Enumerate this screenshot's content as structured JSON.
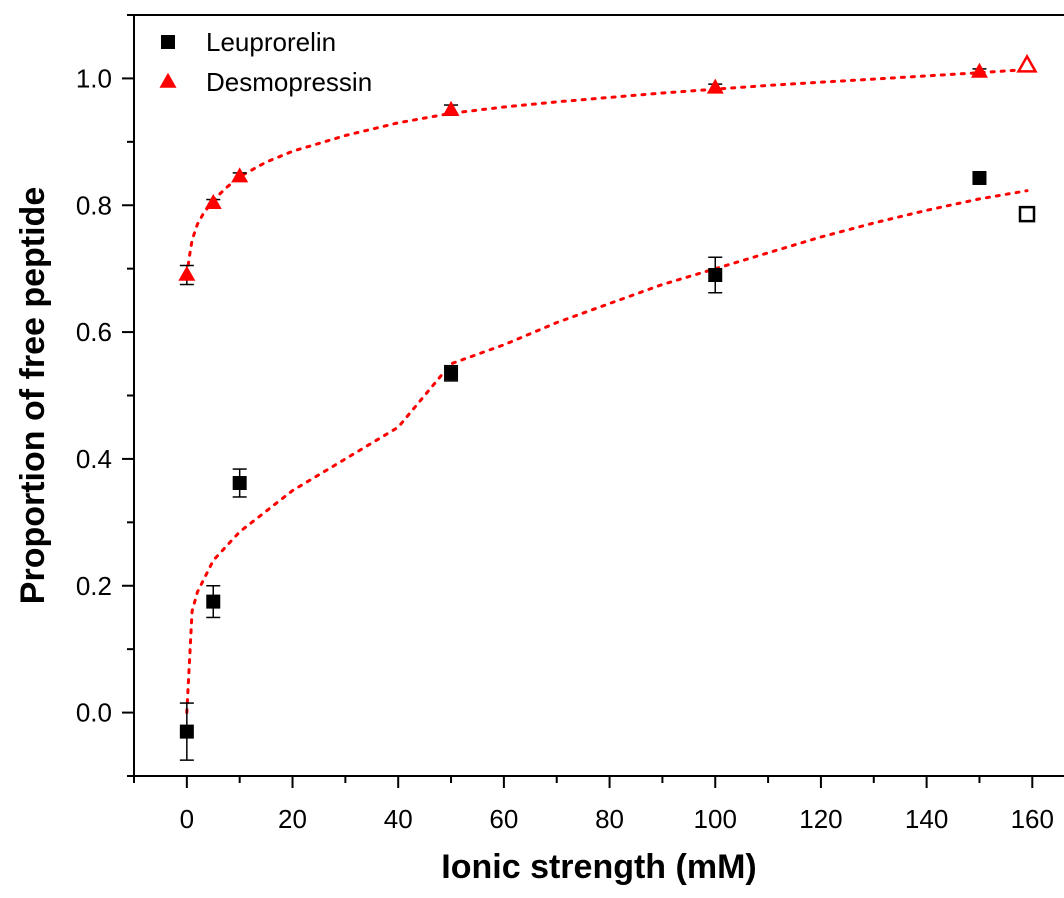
{
  "chart_data": {
    "type": "scatter",
    "xlabel": "Ionic strength (mM)",
    "ylabel": "Proportion of free peptide",
    "xlim": [
      -10,
      166
    ],
    "ylim": [
      -0.1,
      1.1
    ],
    "x_ticks": [
      0,
      20,
      40,
      60,
      80,
      100,
      120,
      140,
      160
    ],
    "x_tick_labels": [
      "0",
      "20",
      "40",
      "60",
      "80",
      "100",
      "120",
      "140",
      "160"
    ],
    "y_ticks": [
      0.0,
      0.2,
      0.4,
      0.6,
      0.8,
      1.0
    ],
    "y_tick_labels": [
      "0.0",
      "0.2",
      "0.4",
      "0.6",
      "0.8",
      "1.0"
    ],
    "grid": false,
    "legend_position": "top-left",
    "colors": {
      "leuprorelin": "#000000",
      "desmopressin": "#ff0000",
      "fit": "#ff0000"
    },
    "series": [
      {
        "name": "Leuprorelin",
        "marker": "square",
        "color": "#000000",
        "points": [
          {
            "x": 0,
            "y": -0.03,
            "err": 0.045
          },
          {
            "x": 5,
            "y": 0.175,
            "err": 0.025
          },
          {
            "x": 10,
            "y": 0.362,
            "err": 0.022
          },
          {
            "x": 50,
            "y": 0.535,
            "err": 0.012
          },
          {
            "x": 100,
            "y": 0.69,
            "err": 0.028
          },
          {
            "x": 150,
            "y": 0.843,
            "err": 0.005
          }
        ],
        "open_points": [
          {
            "x": 159,
            "y": 0.786
          }
        ],
        "fit": [
          [
            0,
            0.0
          ],
          [
            1,
            0.16
          ],
          [
            2,
            0.19
          ],
          [
            5,
            0.24
          ],
          [
            10,
            0.285
          ],
          [
            20,
            0.35
          ],
          [
            30,
            0.4
          ],
          [
            40,
            0.45
          ],
          [
            50,
            0.55
          ],
          [
            60,
            0.58
          ],
          [
            70,
            0.615
          ],
          [
            80,
            0.645
          ],
          [
            90,
            0.675
          ],
          [
            100,
            0.7
          ],
          [
            110,
            0.725
          ],
          [
            120,
            0.75
          ],
          [
            130,
            0.772
          ],
          [
            140,
            0.792
          ],
          [
            150,
            0.81
          ],
          [
            159,
            0.823
          ]
        ]
      },
      {
        "name": "Desmopressin",
        "marker": "triangle",
        "color": "#ff0000",
        "points": [
          {
            "x": 0,
            "y": 0.69,
            "err": 0.015
          },
          {
            "x": 5,
            "y": 0.803,
            "err": 0.006
          },
          {
            "x": 10,
            "y": 0.845,
            "err": 0.006
          },
          {
            "x": 50,
            "y": 0.95,
            "err": 0.008
          },
          {
            "x": 100,
            "y": 0.985,
            "err": 0.006
          },
          {
            "x": 150,
            "y": 1.01,
            "err": 0.005
          }
        ],
        "open_points": [
          {
            "x": 159,
            "y": 1.02
          }
        ],
        "fit": [
          [
            0,
            0.69
          ],
          [
            0.5,
            0.72
          ],
          [
            1,
            0.745
          ],
          [
            2,
            0.77
          ],
          [
            3,
            0.785
          ],
          [
            5,
            0.808
          ],
          [
            7.5,
            0.828
          ],
          [
            10,
            0.845
          ],
          [
            15,
            0.868
          ],
          [
            20,
            0.885
          ],
          [
            30,
            0.91
          ],
          [
            40,
            0.93
          ],
          [
            50,
            0.945
          ],
          [
            60,
            0.955
          ],
          [
            70,
            0.963
          ],
          [
            80,
            0.97
          ],
          [
            90,
            0.977
          ],
          [
            100,
            0.983
          ],
          [
            110,
            0.989
          ],
          [
            120,
            0.994
          ],
          [
            130,
            0.999
          ],
          [
            140,
            1.004
          ],
          [
            150,
            1.009
          ],
          [
            159,
            1.014
          ]
        ]
      }
    ]
  }
}
